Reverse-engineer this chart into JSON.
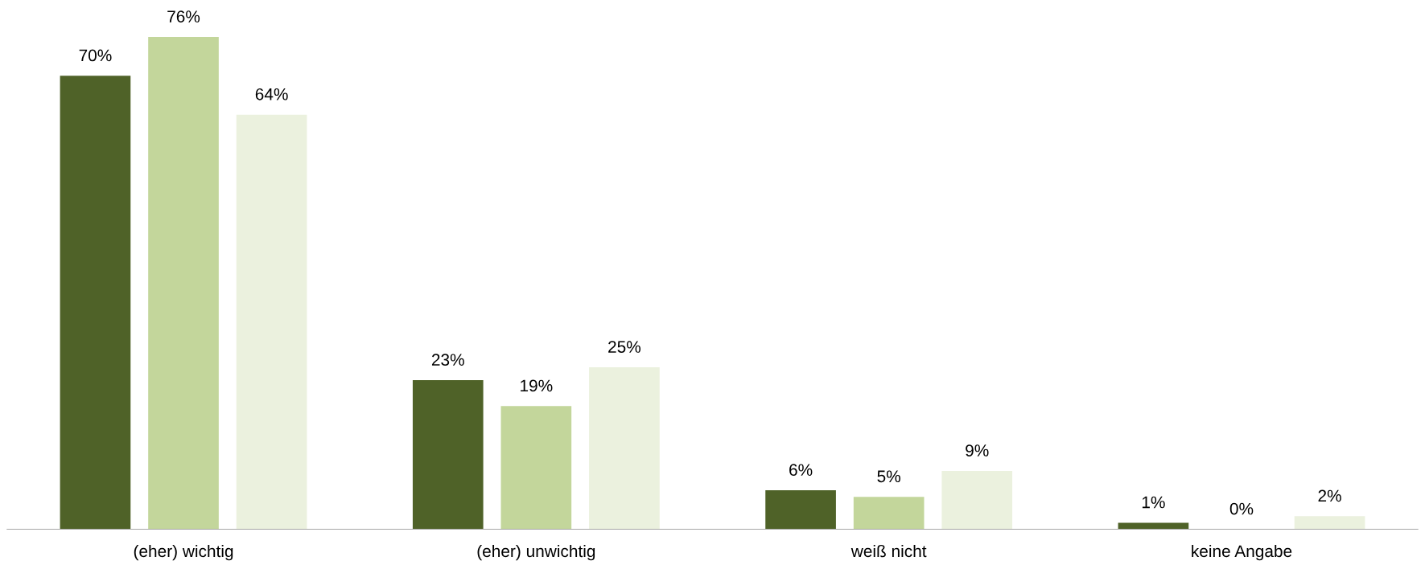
{
  "chart_data": {
    "type": "bar",
    "categories": [
      "(eher) wichtig",
      "(eher) unwichtig",
      "weiß nicht",
      "keine Angabe"
    ],
    "series": [
      {
        "color": "#4f6228",
        "values": [
          70,
          23,
          6,
          1
        ],
        "value_labels": [
          "70%",
          "23%",
          "6%",
          "1%"
        ]
      },
      {
        "color": "#c3d69b",
        "values": [
          76,
          19,
          5,
          0
        ],
        "value_labels": [
          "76%",
          "19%",
          "5%",
          "0%"
        ]
      },
      {
        "color": "#ebf1de",
        "values": [
          64,
          25,
          9,
          2
        ],
        "value_labels": [
          "64%",
          "25%",
          "9%",
          "2%"
        ]
      }
    ]
  }
}
